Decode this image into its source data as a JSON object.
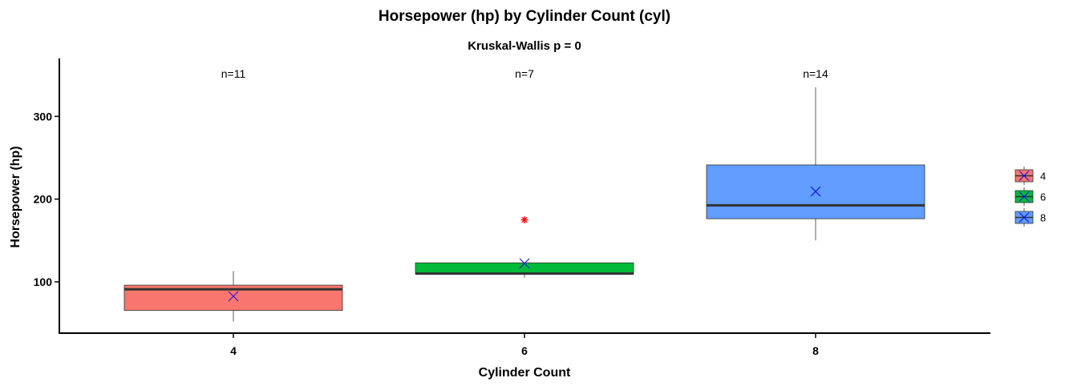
{
  "chart_data": {
    "type": "box",
    "title": "Horsepower (hp) by Cylinder Count (cyl)",
    "subtitle": "Kruskal-Wallis p = 0",
    "xlabel": "Cylinder Count",
    "ylabel": "Horsepower (hp)",
    "ylim": [
      38,
      370
    ],
    "yticks": [
      100,
      200,
      300
    ],
    "grid": false,
    "legend_position": "right",
    "categories": [
      "4",
      "6",
      "8"
    ],
    "groups": [
      {
        "name": "4",
        "n_label": "n=11",
        "color": "#F8766D",
        "min": 52,
        "q1": 65.5,
        "median": 91,
        "q3": 96,
        "max": 113,
        "mean": 82.6,
        "outliers": []
      },
      {
        "name": "6",
        "n_label": "n=7",
        "color": "#00BA38",
        "min": 105,
        "q1": 110,
        "median": 110,
        "q3": 123,
        "max": 123,
        "mean": 122.3,
        "outliers": [
          175
        ]
      },
      {
        "name": "8",
        "n_label": "n=14",
        "color": "#619CFF",
        "min": 150,
        "q1": 176.3,
        "median": 192.5,
        "q3": 241.3,
        "max": 335,
        "mean": 209.2,
        "outliers": []
      }
    ],
    "mean_marker_color": "#0000FF",
    "outlier_color": "#FF0000",
    "median_line_color": "#333333"
  }
}
